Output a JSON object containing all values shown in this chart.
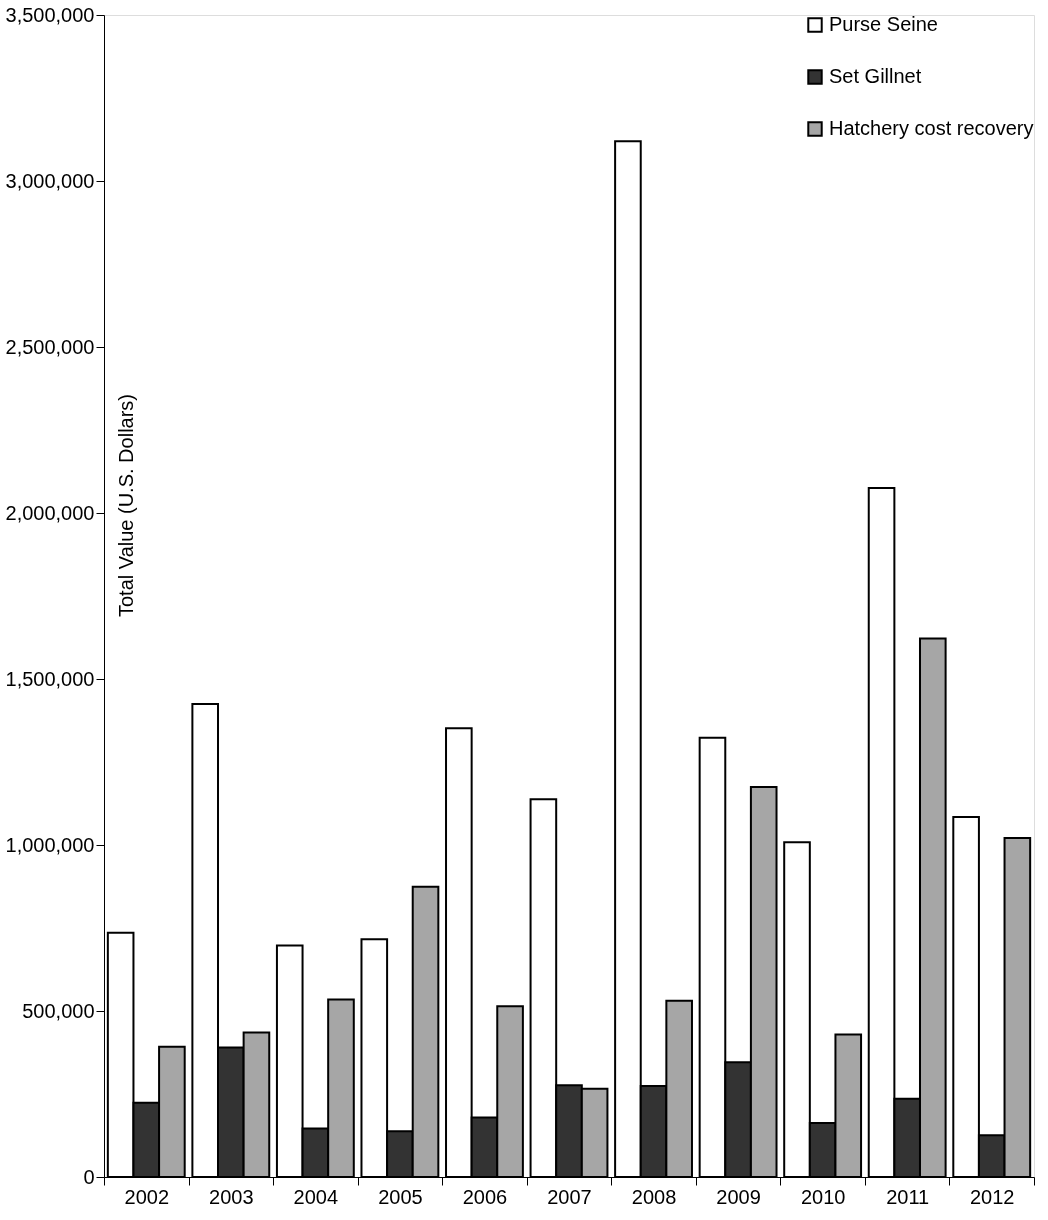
{
  "chart_data": {
    "type": "bar",
    "ylabel": "Total Value (U.S. Dollars)",
    "categories": [
      "2002",
      "2003",
      "2004",
      "2005",
      "2006",
      "2007",
      "2008",
      "2009",
      "2010",
      "2011",
      "2012"
    ],
    "series": [
      {
        "name": "Purse Seine",
        "color": "#ffffff",
        "values": [
          736000,
          1425000,
          697000,
          716000,
          1352000,
          1138000,
          3120000,
          1323000,
          1008000,
          2075000,
          1084000
        ]
      },
      {
        "name": "Set Gillnet",
        "color": "#333333",
        "values": [
          224000,
          390000,
          146000,
          138000,
          179000,
          276000,
          274000,
          346000,
          163000,
          236000,
          126000
        ]
      },
      {
        "name": "Hatchery cost recovery",
        "color": "#a6a6a6",
        "values": [
          392000,
          435000,
          535000,
          874000,
          514000,
          266000,
          531000,
          1175000,
          429000,
          1622000,
          1021000
        ]
      }
    ],
    "ylim": [
      0,
      3500000
    ],
    "yticks": [
      0,
      {
        "value": 500000,
        "label": "500,000"
      },
      {
        "value": 1000000,
        "label": "1,000,000"
      },
      {
        "value": 1500000,
        "label": "1,500,000"
      },
      {
        "value": 2000000,
        "label": "2,000,000"
      },
      {
        "value": 2500000,
        "label": "2,500,000"
      },
      {
        "value": 3000000,
        "label": "3,000,000"
      },
      {
        "value": 3500000,
        "label": "3,500,000"
      }
    ],
    "grid": false,
    "legend": "top right"
  }
}
